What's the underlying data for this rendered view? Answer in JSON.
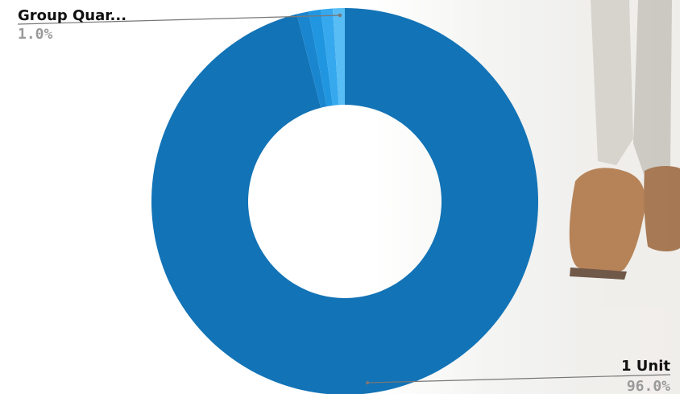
{
  "chart_data": {
    "type": "pie",
    "donut": true,
    "slices": [
      {
        "label": "1 Unit",
        "value": 96.0,
        "display": "96.0%",
        "color": "#1273b6"
      },
      {
        "label": "",
        "value": 1.0,
        "display": "",
        "color": "#1a86cf"
      },
      {
        "label": "",
        "value": 1.0,
        "display": "",
        "color": "#2096e0"
      },
      {
        "label": "",
        "value": 1.0,
        "display": "",
        "color": "#36a8ee"
      },
      {
        "label": "Group Quar...",
        "value": 1.0,
        "display": "1.0%",
        "color": "#58bdf4"
      }
    ],
    "labeled_slices": [
      "Group Quar...",
      "1 Unit"
    ]
  },
  "labels": {
    "top_left": {
      "name": "Group Quar...",
      "value": "1.0%"
    },
    "bottom_right": {
      "name": "1 Unit",
      "value": "96.0%"
    }
  },
  "colors": {
    "leader_line": "#777777",
    "background_photo_tone": "#e9e7e2",
    "shoe_brown": "#a66a3c",
    "pant_gray": "#c9c6bf"
  }
}
